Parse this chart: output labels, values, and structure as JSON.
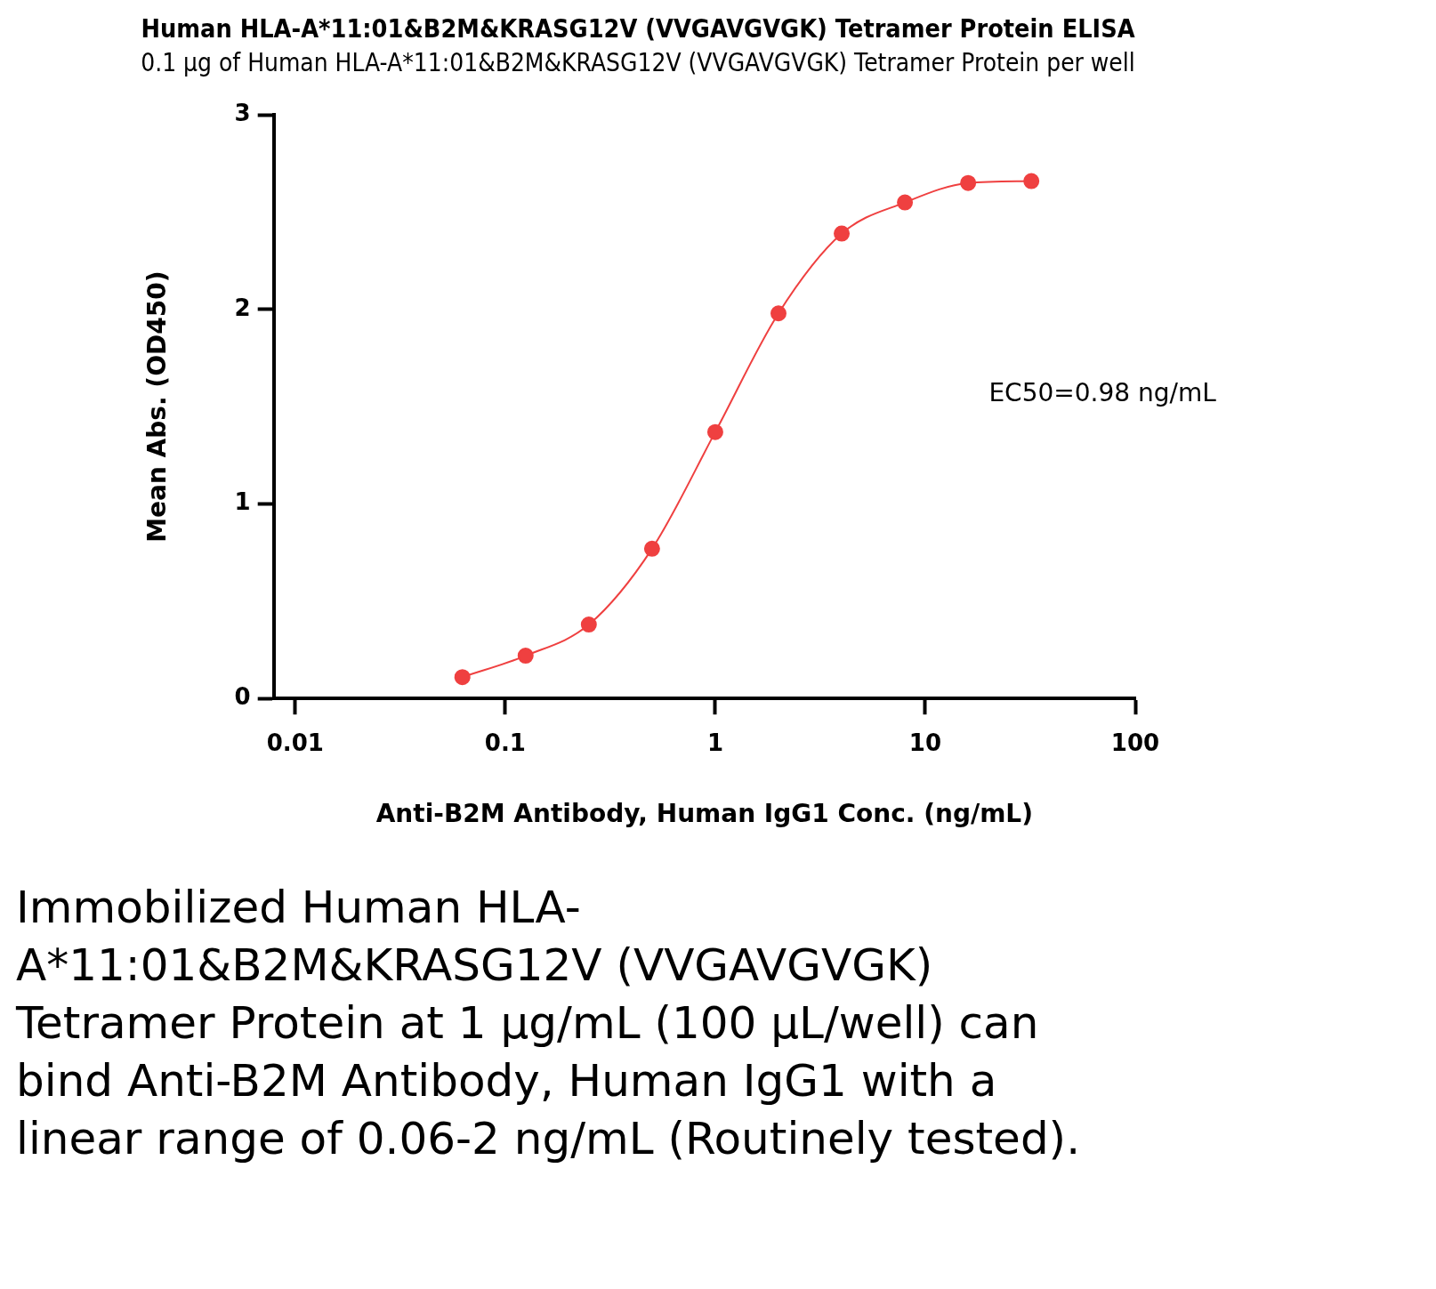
{
  "chart_data": {
    "type": "line",
    "title": "Human HLA-A*11:01&B2M&KRASG12V (VVGAVGVGK) Tetramer Protein ELISA",
    "subtitle": "0.1 μg of Human HLA-A*11:01&B2M&KRASG12V (VVGAVGVGK) Tetramer Protein per well",
    "xlabel": "Anti-B2M Antibody, Human IgG1 Conc. (ng/mL)",
    "ylabel": "Mean Abs. (OD450)",
    "x": [
      0.0625,
      0.125,
      0.25,
      0.5,
      1,
      2,
      4,
      8,
      16,
      32
    ],
    "series": [
      {
        "color": "#ef4040",
        "values": [
          0.11,
          0.22,
          0.38,
          0.77,
          1.37,
          1.98,
          2.39,
          2.55,
          2.65,
          2.66
        ]
      }
    ],
    "log": "x",
    "xlim": [
      0.0079,
      100
    ],
    "xticks": [
      0.01,
      0.1,
      1,
      10,
      100
    ],
    "ylim": [
      0,
      3
    ],
    "yticks": [
      0,
      1,
      2,
      3
    ],
    "grid": false,
    "legend": false,
    "marker": "circle",
    "line_style": "solid",
    "annotations": [
      "EC50=0.98 ng/mL",
      "Immobilized Human HLA-A*11:01&B2M&KRASG12V (VVGAVGVGK) Tetramer Protein at 1 μg/mL (100 μL/well) can bind Anti-B2M Antibody, Human IgG1 with a linear range of 0.06-2 ng/mL (Routinely tested)."
    ]
  }
}
